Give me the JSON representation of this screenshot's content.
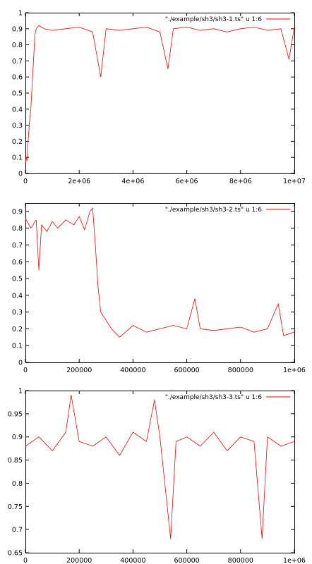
{
  "colors": {
    "series": "#ff0000",
    "frame": "#000000",
    "background": "#ffffff"
  },
  "chart_data": [
    {
      "type": "line",
      "title": "",
      "xlabel": "",
      "ylabel": "",
      "xlim": [
        0,
        10000000
      ],
      "ylim": [
        0,
        1
      ],
      "xticks": [
        0,
        2000000,
        4000000,
        6000000,
        8000000,
        10000000
      ],
      "xtick_labels": [
        "0",
        "2e+06",
        "4e+06",
        "6e+06",
        "8e+06",
        "1e+07"
      ],
      "yticks": [
        0,
        0.1,
        0.2,
        0.3,
        0.4,
        0.5,
        0.6,
        0.7,
        0.8,
        0.9,
        1
      ],
      "ytick_labels": [
        "0",
        "0.1",
        "0.2",
        "0.3",
        "0.4",
        "0.5",
        "0.6",
        "0.7",
        "0.8",
        "0.9",
        "1"
      ],
      "grid": false,
      "legend": "top-right",
      "series": [
        {
          "name": "\"./example/sh3/sh3-1.ts\" u 1:6",
          "color": "#ff0000",
          "x": [
            0,
            30000,
            60000,
            100000,
            150000,
            200000,
            250000,
            300000,
            350000,
            400000,
            500000,
            700000,
            1000000,
            1500000,
            2000000,
            2500000,
            2800000,
            3000000,
            3500000,
            4000000,
            4500000,
            5000000,
            5300000,
            5500000,
            6000000,
            6500000,
            7000000,
            7500000,
            8000000,
            8500000,
            9000000,
            9500000,
            9800000,
            10000000
          ],
          "values": [
            0.06,
            0.1,
            0.08,
            0.2,
            0.32,
            0.4,
            0.55,
            0.7,
            0.86,
            0.9,
            0.92,
            0.9,
            0.89,
            0.9,
            0.91,
            0.88,
            0.6,
            0.9,
            0.89,
            0.9,
            0.91,
            0.88,
            0.65,
            0.9,
            0.91,
            0.89,
            0.9,
            0.88,
            0.9,
            0.91,
            0.89,
            0.9,
            0.71,
            0.91
          ]
        }
      ]
    },
    {
      "type": "line",
      "title": "",
      "xlabel": "",
      "ylabel": "",
      "xlim": [
        0,
        1000000
      ],
      "ylim": [
        0,
        0.95
      ],
      "xticks": [
        0,
        200000,
        400000,
        600000,
        800000,
        1000000
      ],
      "xtick_labels": [
        "0",
        "200000",
        "400000",
        "600000",
        "800000",
        "1e+06"
      ],
      "yticks": [
        0,
        0.1,
        0.2,
        0.3,
        0.4,
        0.5,
        0.6,
        0.7,
        0.8,
        0.9
      ],
      "ytick_labels": [
        "0",
        "0.1",
        "0.2",
        "0.3",
        "0.4",
        "0.5",
        "0.6",
        "0.7",
        "0.8",
        "0.9"
      ],
      "grid": false,
      "legend": "top-right",
      "series": [
        {
          "name": "\"./example/sh3/sh3-2.ts\" u 1:6",
          "color": "#ff0000",
          "x": [
            0,
            20000,
            40000,
            50000,
            60000,
            80000,
            100000,
            120000,
            150000,
            180000,
            200000,
            220000,
            240000,
            250000,
            260000,
            270000,
            280000,
            300000,
            320000,
            350000,
            400000,
            450000,
            500000,
            550000,
            600000,
            630000,
            650000,
            700000,
            750000,
            800000,
            850000,
            900000,
            940000,
            960000,
            1000000
          ],
          "values": [
            0.86,
            0.8,
            0.85,
            0.55,
            0.82,
            0.78,
            0.84,
            0.8,
            0.85,
            0.82,
            0.87,
            0.79,
            0.9,
            0.92,
            0.7,
            0.45,
            0.3,
            0.25,
            0.2,
            0.15,
            0.22,
            0.18,
            0.2,
            0.22,
            0.2,
            0.38,
            0.2,
            0.19,
            0.2,
            0.21,
            0.18,
            0.2,
            0.35,
            0.16,
            0.18
          ]
        }
      ]
    },
    {
      "type": "line",
      "title": "",
      "xlabel": "",
      "ylabel": "",
      "xlim": [
        0,
        1000000
      ],
      "ylim": [
        0.65,
        1
      ],
      "xticks": [
        0,
        200000,
        400000,
        600000,
        800000,
        1000000
      ],
      "xtick_labels": [
        "0",
        "200000",
        "400000",
        "600000",
        "800000",
        "1e+06"
      ],
      "yticks": [
        0.65,
        0.7,
        0.75,
        0.8,
        0.85,
        0.9,
        0.95,
        1
      ],
      "ytick_labels": [
        "0.65",
        "0.7",
        "0.75",
        "0.8",
        "0.85",
        "0.9",
        "0.95",
        "1"
      ],
      "grid": false,
      "legend": "top-right",
      "series": [
        {
          "name": "\"./example/sh3/sh3-3.ts\" u 1:6",
          "color": "#ff0000",
          "x": [
            0,
            50000,
            100000,
            150000,
            170000,
            200000,
            250000,
            300000,
            350000,
            400000,
            450000,
            480000,
            500000,
            540000,
            560000,
            600000,
            650000,
            700000,
            750000,
            800000,
            850000,
            880000,
            900000,
            950000,
            1000000
          ],
          "values": [
            0.88,
            0.9,
            0.87,
            0.91,
            0.99,
            0.89,
            0.88,
            0.9,
            0.86,
            0.91,
            0.89,
            0.98,
            0.9,
            0.68,
            0.89,
            0.9,
            0.88,
            0.91,
            0.87,
            0.9,
            0.89,
            0.68,
            0.9,
            0.88,
            0.89
          ]
        }
      ]
    }
  ]
}
